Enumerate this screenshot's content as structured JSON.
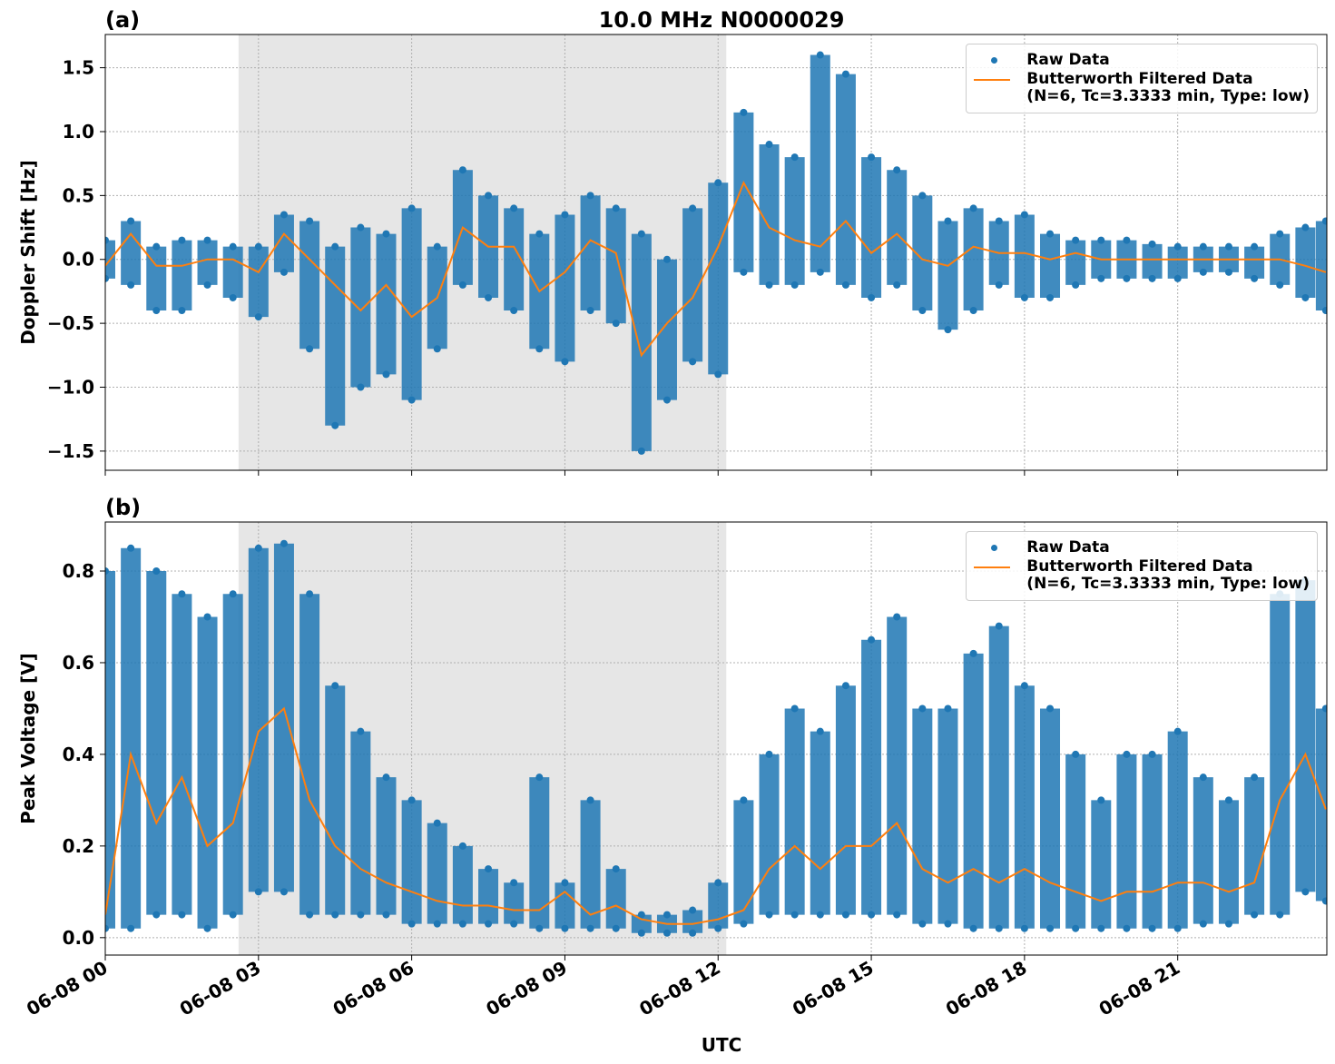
{
  "chart_data": [
    {
      "type": "scatter",
      "panel_label": "(a)",
      "title": "10.0 MHz N0000029",
      "ylabel": "Doppler Shift [Hz]",
      "xlim": [
        0,
        23.92
      ],
      "xticks": [
        0,
        3,
        6,
        9,
        12,
        15,
        18,
        21
      ],
      "ylim": [
        -1.65,
        1.76
      ],
      "yticks": [
        {
          "value": -1.5,
          "label": "−1.5"
        },
        {
          "value": -1,
          "label": "−1.0"
        },
        {
          "value": -0.5,
          "label": "−0.5"
        },
        {
          "value": 0,
          "label": "0.0"
        },
        {
          "value": 0.5,
          "label": "0.5"
        },
        {
          "value": 1,
          "label": "1.0"
        },
        {
          "value": 1.5,
          "label": "1.5"
        }
      ],
      "grid": true,
      "legend": "upper right",
      "shaded_span": [
        2.61,
        12.16
      ],
      "shade_color": "#e6e6e6",
      "series": [
        {
          "name": "Raw Data",
          "color": "#1f77b4",
          "style": "dots",
          "x": [
            0,
            0,
            0.5,
            0.5,
            1,
            1,
            1.5,
            1.5,
            2,
            2,
            2.5,
            2.5,
            3,
            3,
            3.5,
            3.5,
            4,
            4,
            4.5,
            4.5,
            5,
            5,
            5.5,
            5.5,
            6,
            6,
            6.5,
            6.5,
            7,
            7,
            7.5,
            7.5,
            8,
            8,
            8.5,
            8.5,
            9,
            9,
            9.5,
            9.5,
            10,
            10,
            10.5,
            10.5,
            11,
            11,
            11.5,
            11.5,
            12,
            12,
            12.5,
            12.5,
            13,
            13,
            13.5,
            13.5,
            14,
            14,
            14.5,
            14.5,
            15,
            15,
            15.5,
            15.5,
            16,
            16,
            16.5,
            16.5,
            17,
            17,
            17.5,
            17.5,
            18,
            18,
            18.5,
            18.5,
            19,
            19,
            19.5,
            19.5,
            20,
            20,
            20.5,
            20.5,
            21,
            21,
            21.5,
            21.5,
            22,
            22,
            22.5,
            22.5,
            23,
            23,
            23.5,
            23.5,
            23.9,
            23.9
          ],
          "values": [
            0.15,
            -0.15,
            0.3,
            -0.2,
            0.1,
            -0.4,
            0.15,
            -0.4,
            0.15,
            -0.2,
            0.1,
            -0.3,
            0.1,
            -0.45,
            0.35,
            -0.1,
            0.3,
            -0.7,
            0.1,
            -1.3,
            0.25,
            -1.0,
            0.2,
            -0.9,
            0.4,
            -1.1,
            0.1,
            -0.7,
            0.7,
            -0.2,
            0.5,
            -0.3,
            0.4,
            -0.4,
            0.2,
            -0.7,
            0.35,
            -0.8,
            0.5,
            -0.4,
            0.4,
            -0.5,
            0.2,
            -1.5,
            0.0,
            -1.1,
            0.4,
            -0.8,
            0.6,
            -0.9,
            1.15,
            -0.1,
            0.9,
            -0.2,
            0.8,
            -0.2,
            1.6,
            -0.1,
            1.45,
            -0.2,
            0.8,
            -0.3,
            0.7,
            -0.2,
            0.5,
            -0.4,
            0.3,
            -0.55,
            0.4,
            -0.4,
            0.3,
            -0.2,
            0.35,
            -0.3,
            0.2,
            -0.3,
            0.15,
            -0.2,
            0.15,
            -0.15,
            0.15,
            -0.15,
            0.12,
            -0.15,
            0.1,
            -0.15,
            0.1,
            -0.1,
            0.1,
            -0.1,
            0.1,
            -0.15,
            0.2,
            -0.2,
            0.25,
            -0.3,
            0.3,
            -0.4
          ]
        },
        {
          "name": "Butterworth Filtered Data\n(N=6, Tc=3.3333 min, Type: low)",
          "color": "#ff7f0e",
          "style": "line",
          "x": [
            0,
            0.5,
            1,
            1.5,
            2,
            2.5,
            3,
            3.5,
            4,
            4.5,
            5,
            5.5,
            6,
            6.5,
            7,
            7.5,
            8,
            8.5,
            9,
            9.5,
            10,
            10.5,
            11,
            11.5,
            12,
            12.5,
            13,
            13.5,
            14,
            14.5,
            15,
            15.5,
            16,
            16.5,
            17,
            17.5,
            18,
            18.5,
            19,
            19.5,
            20,
            20.5,
            21,
            21.5,
            22,
            22.5,
            23,
            23.5,
            23.9
          ],
          "values": [
            -0.05,
            0.2,
            -0.05,
            -0.05,
            0.0,
            0.0,
            -0.1,
            0.2,
            0.0,
            -0.2,
            -0.4,
            -0.2,
            -0.45,
            -0.3,
            0.25,
            0.1,
            0.1,
            -0.25,
            -0.1,
            0.15,
            0.05,
            -0.75,
            -0.5,
            -0.3,
            0.1,
            0.6,
            0.25,
            0.15,
            0.1,
            0.3,
            0.05,
            0.2,
            0.0,
            -0.05,
            0.1,
            0.05,
            0.05,
            0.0,
            0.05,
            0.0,
            0.0,
            0.0,
            0.0,
            0.0,
            0.0,
            0.0,
            0.0,
            -0.05,
            -0.1
          ]
        }
      ]
    },
    {
      "type": "scatter",
      "panel_label": "(b)",
      "ylabel": "Peak Voltage [V]",
      "xlabel": "UTC",
      "xlim": [
        0,
        23.92
      ],
      "xticks": [
        {
          "value": 0,
          "label": "06-08 00"
        },
        {
          "value": 3,
          "label": "06-08 03"
        },
        {
          "value": 6,
          "label": "06-08 06"
        },
        {
          "value": 9,
          "label": "06-08 09"
        },
        {
          "value": 12,
          "label": "06-08 12"
        },
        {
          "value": 15,
          "label": "06-08 15"
        },
        {
          "value": 18,
          "label": "06-08 18"
        },
        {
          "value": 21,
          "label": "06-08 21"
        }
      ],
      "ylim": [
        -0.038,
        0.907
      ],
      "yticks": [
        {
          "value": 0,
          "label": "0.0"
        },
        {
          "value": 0.2,
          "label": "0.2"
        },
        {
          "value": 0.4,
          "label": "0.4"
        },
        {
          "value": 0.6,
          "label": "0.6"
        },
        {
          "value": 0.8,
          "label": "0.8"
        }
      ],
      "grid": true,
      "legend": "upper right",
      "shaded_span": [
        2.61,
        12.16
      ],
      "shade_color": "#e6e6e6",
      "series": [
        {
          "name": "Raw Data",
          "color": "#1f77b4",
          "style": "dots",
          "x": [
            0,
            0,
            0.5,
            0.5,
            1,
            1,
            1.5,
            1.5,
            2,
            2,
            2.5,
            2.5,
            3,
            3,
            3.5,
            3.5,
            4,
            4,
            4.5,
            4.5,
            5,
            5,
            5.5,
            5.5,
            6,
            6,
            6.5,
            6.5,
            7,
            7,
            7.5,
            7.5,
            8,
            8,
            8.5,
            8.5,
            9,
            9,
            9.5,
            9.5,
            10,
            10,
            10.5,
            10.5,
            11,
            11,
            11.5,
            11.5,
            12,
            12,
            12.5,
            12.5,
            13,
            13,
            13.5,
            13.5,
            14,
            14,
            14.5,
            14.5,
            15,
            15,
            15.5,
            15.5,
            16,
            16,
            16.5,
            16.5,
            17,
            17,
            17.5,
            17.5,
            18,
            18,
            18.5,
            18.5,
            19,
            19,
            19.5,
            19.5,
            20,
            20,
            20.5,
            20.5,
            21,
            21,
            21.5,
            21.5,
            22,
            22,
            22.5,
            22.5,
            23,
            23,
            23.5,
            23.5,
            23.9,
            23.9
          ],
          "values": [
            0.8,
            0.02,
            0.85,
            0.02,
            0.8,
            0.05,
            0.75,
            0.05,
            0.7,
            0.02,
            0.75,
            0.05,
            0.85,
            0.1,
            0.86,
            0.1,
            0.75,
            0.05,
            0.55,
            0.05,
            0.45,
            0.05,
            0.35,
            0.05,
            0.3,
            0.03,
            0.25,
            0.03,
            0.2,
            0.03,
            0.15,
            0.03,
            0.12,
            0.03,
            0.35,
            0.02,
            0.12,
            0.02,
            0.3,
            0.02,
            0.15,
            0.02,
            0.05,
            0.01,
            0.05,
            0.01,
            0.06,
            0.01,
            0.12,
            0.02,
            0.3,
            0.03,
            0.4,
            0.05,
            0.5,
            0.05,
            0.45,
            0.05,
            0.55,
            0.05,
            0.65,
            0.05,
            0.7,
            0.05,
            0.5,
            0.03,
            0.5,
            0.03,
            0.62,
            0.02,
            0.68,
            0.02,
            0.55,
            0.02,
            0.5,
            0.02,
            0.4,
            0.02,
            0.3,
            0.02,
            0.4,
            0.02,
            0.4,
            0.02,
            0.45,
            0.02,
            0.35,
            0.03,
            0.3,
            0.03,
            0.35,
            0.05,
            0.75,
            0.05,
            0.78,
            0.1,
            0.5,
            0.08
          ]
        },
        {
          "name": "Butterworth Filtered Data\n(N=6, Tc=3.3333 min, Type: low)",
          "color": "#ff7f0e",
          "style": "line",
          "x": [
            0,
            0.5,
            1,
            1.5,
            2,
            2.5,
            3,
            3.5,
            4,
            4.5,
            5,
            5.5,
            6,
            6.5,
            7,
            7.5,
            8,
            8.5,
            9,
            9.5,
            10,
            10.5,
            11,
            11.5,
            12,
            12.5,
            13,
            13.5,
            14,
            14.5,
            15,
            15.5,
            16,
            16.5,
            17,
            17.5,
            18,
            18.5,
            19,
            19.5,
            20,
            20.5,
            21,
            21.5,
            22,
            22.5,
            23,
            23.5,
            23.9
          ],
          "values": [
            0.05,
            0.4,
            0.25,
            0.35,
            0.2,
            0.25,
            0.45,
            0.5,
            0.3,
            0.2,
            0.15,
            0.12,
            0.1,
            0.08,
            0.07,
            0.07,
            0.06,
            0.06,
            0.1,
            0.05,
            0.07,
            0.04,
            0.03,
            0.03,
            0.04,
            0.06,
            0.15,
            0.2,
            0.15,
            0.2,
            0.2,
            0.25,
            0.15,
            0.12,
            0.15,
            0.12,
            0.15,
            0.12,
            0.1,
            0.08,
            0.1,
            0.1,
            0.12,
            0.12,
            0.1,
            0.12,
            0.3,
            0.4,
            0.28
          ]
        }
      ]
    }
  ]
}
